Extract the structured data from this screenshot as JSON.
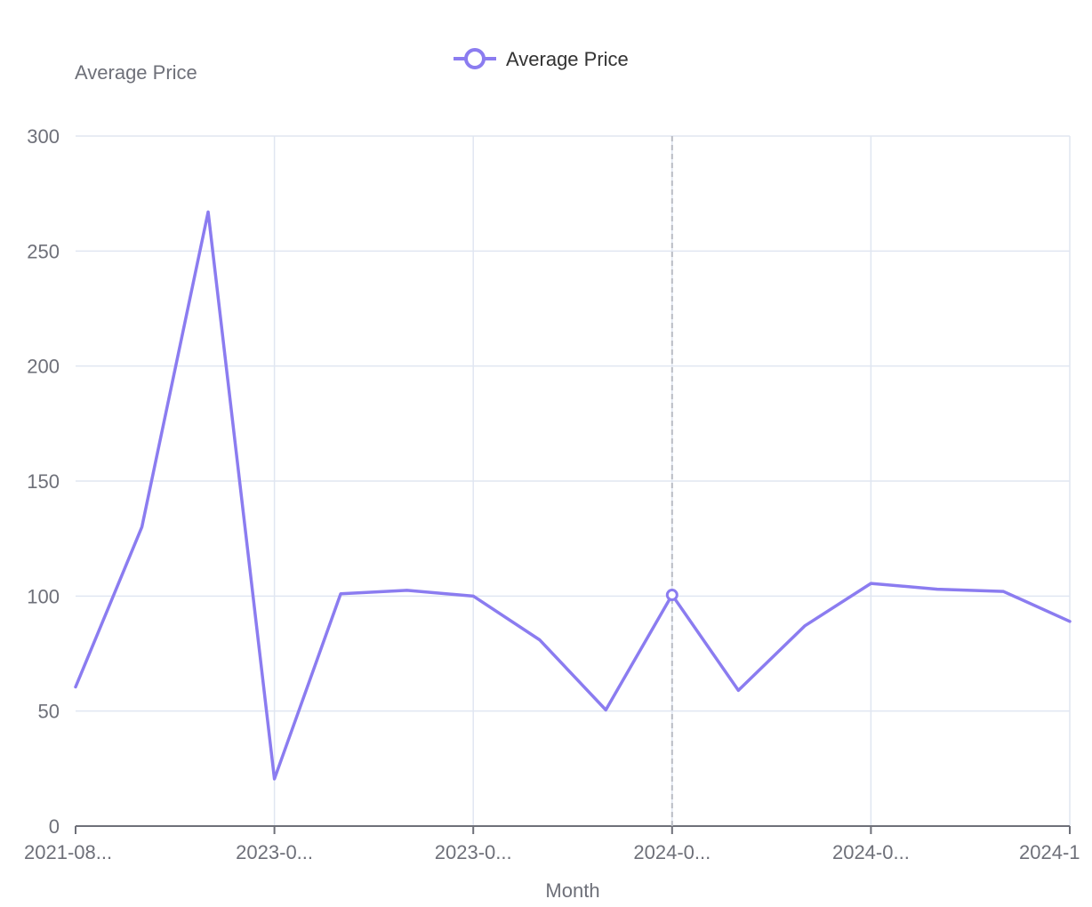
{
  "chart_data": {
    "type": "line",
    "yAxisName": "Average Price",
    "xAxisName": "Month",
    "xTickLabels": [
      "2021-08...",
      "2023-0...",
      "2023-0...",
      "2024-0...",
      "2024-0...",
      "2024-1"
    ],
    "ylim": [
      0,
      300
    ],
    "yTicks": [
      0,
      50,
      100,
      150,
      200,
      250,
      300
    ],
    "grid": true,
    "legend_position": "top-center",
    "series": [
      {
        "name": "Average Price",
        "color": "#8b7cf0",
        "values": [
          60.5,
          130,
          267,
          20.5,
          101,
          102.5,
          100,
          81,
          50.5,
          100.5,
          59,
          87,
          105.5,
          103,
          102,
          89
        ]
      }
    ],
    "highlight": {
      "index": 9
    }
  }
}
